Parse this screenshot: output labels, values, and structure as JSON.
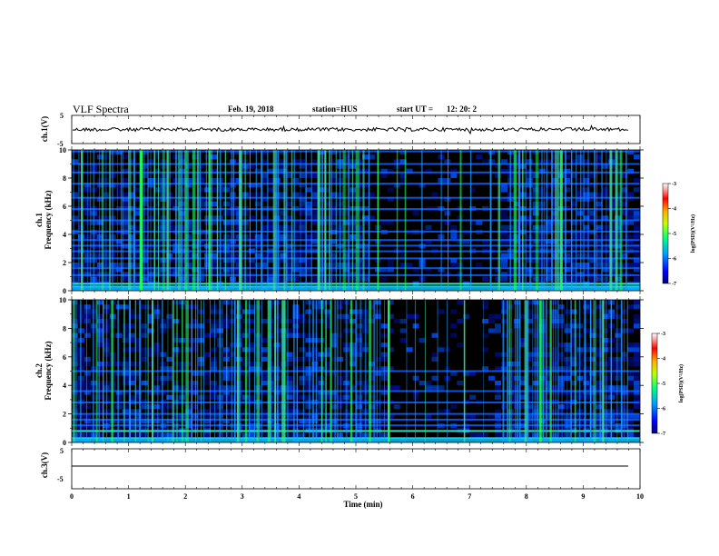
{
  "header": {
    "title": "VLF Spectra",
    "date": "Feb. 19, 2018",
    "station": "station=HUS",
    "start_label": "start UT =",
    "start_time": "12: 20: 2"
  },
  "chart_data": [
    {
      "type": "line",
      "panel": "ch1-waveform",
      "ylabel": "ch.1(V)",
      "yticks": [
        "5",
        "-5"
      ],
      "ylim": [
        -5,
        5
      ],
      "xlim": [
        0,
        10
      ],
      "series": [
        {
          "description_level": 0.0
        }
      ]
    },
    {
      "type": "heatmap",
      "panel": "ch1-spectrogram",
      "ylabel_ch": "ch.1",
      "ylabel": "Frequency (kHz)",
      "yticks": [
        "10",
        "8",
        "6",
        "4",
        "2",
        "0"
      ],
      "ylim": [
        0,
        10
      ],
      "xlim": [
        0,
        10
      ],
      "colorbar": {
        "label": "log(PSD)(V²/Hz)",
        "ticks": [
          "-3",
          "-4",
          "-5",
          "-6",
          "-7"
        ],
        "range": [
          -7,
          -3
        ]
      },
      "dark_region_minutes": [
        5.2,
        7.6
      ],
      "tone_bands_khz": [
        0.3,
        0.5,
        1.1,
        1.6,
        2.3,
        2.8,
        3.2,
        3.6,
        4.2,
        5.0,
        5.8,
        6.6,
        7.6,
        8.4,
        9.0,
        9.9
      ]
    },
    {
      "type": "heatmap",
      "panel": "ch2-spectrogram",
      "ylabel_ch": "ch.2",
      "ylabel": "Frequency (kHz)",
      "yticks": [
        "10",
        "8",
        "6",
        "4",
        "2",
        "0"
      ],
      "ylim": [
        0,
        10
      ],
      "xlim": [
        0,
        10
      ],
      "colorbar": {
        "label": "log(PSD)(V²/Hz)",
        "ticks": [
          "-3",
          "-4",
          "-5",
          "-6",
          "-7"
        ],
        "range": [
          -7,
          -3
        ]
      },
      "dark_region_minutes": [
        5.5,
        7.5
      ],
      "tone_bands_khz": [
        0.3,
        0.8,
        1.2,
        1.6,
        2.0,
        2.8,
        3.6,
        5.0
      ]
    },
    {
      "type": "line",
      "panel": "ch3-waveform",
      "ylabel": "ch.3(V)",
      "yticks": [
        "5",
        "-5"
      ],
      "ylim": [
        -5,
        5
      ],
      "xlim": [
        0,
        10
      ],
      "series": [
        {
          "description_level": -1.0
        }
      ]
    }
  ],
  "x_axis": {
    "label": "Time (min)",
    "ticks": [
      "0",
      "1",
      "2",
      "3",
      "4",
      "5",
      "6",
      "7",
      "8",
      "9",
      "10"
    ]
  }
}
